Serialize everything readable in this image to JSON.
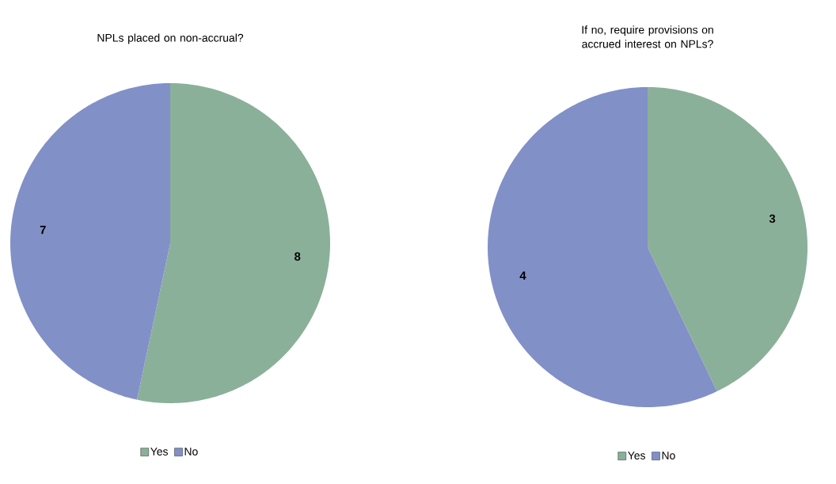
{
  "chart_data": [
    {
      "type": "pie",
      "title": "NPLs placed on non-accrual?",
      "categories": [
        "Yes",
        "No"
      ],
      "values": [
        8,
        7
      ],
      "colors": [
        "#8bb09a",
        "#8290c8"
      ],
      "data_labels": true,
      "legend": "bottom"
    },
    {
      "type": "pie",
      "title": "If no, require provisions on accrued interest on NPLs?",
      "categories": [
        "Yes",
        "No"
      ],
      "values": [
        3,
        4
      ],
      "colors": [
        "#8bb09a",
        "#8290c8"
      ],
      "data_labels": true,
      "legend": "bottom"
    }
  ]
}
